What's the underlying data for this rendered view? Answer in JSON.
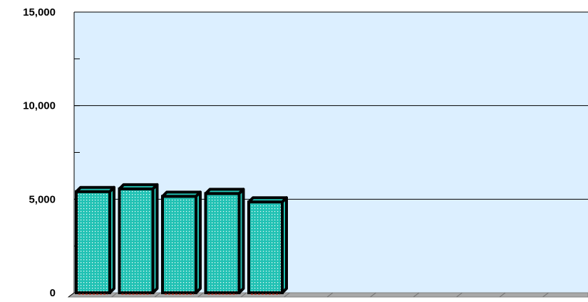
{
  "chart_data": {
    "type": "bar",
    "title": "",
    "xlabel": "",
    "ylabel": "",
    "ylim": [
      0,
      15000
    ],
    "y_ticks": [
      {
        "value": 0,
        "label": "0"
      },
      {
        "value": 5000,
        "label": "5,000"
      },
      {
        "value": 10000,
        "label": "10,000"
      },
      {
        "value": 15000,
        "label": "15,000"
      }
    ],
    "y_minor_step": 2500,
    "grid": true,
    "legend": "none",
    "style": "3d-bar",
    "categories": [
      "",
      "",
      "",
      "",
      "",
      "",
      "",
      "",
      "",
      "",
      "",
      ""
    ],
    "values": [
      5400,
      5550,
      5150,
      5300,
      4850,
      null,
      null,
      null,
      null,
      null,
      null,
      null
    ],
    "colors": {
      "plot_background": "#dcefff",
      "floor": "#a8a8a8",
      "bar_fill": "#22c2b4",
      "bar_dots": "#ffffff",
      "bar_outline": "#000000",
      "gridline": "#000000"
    }
  }
}
